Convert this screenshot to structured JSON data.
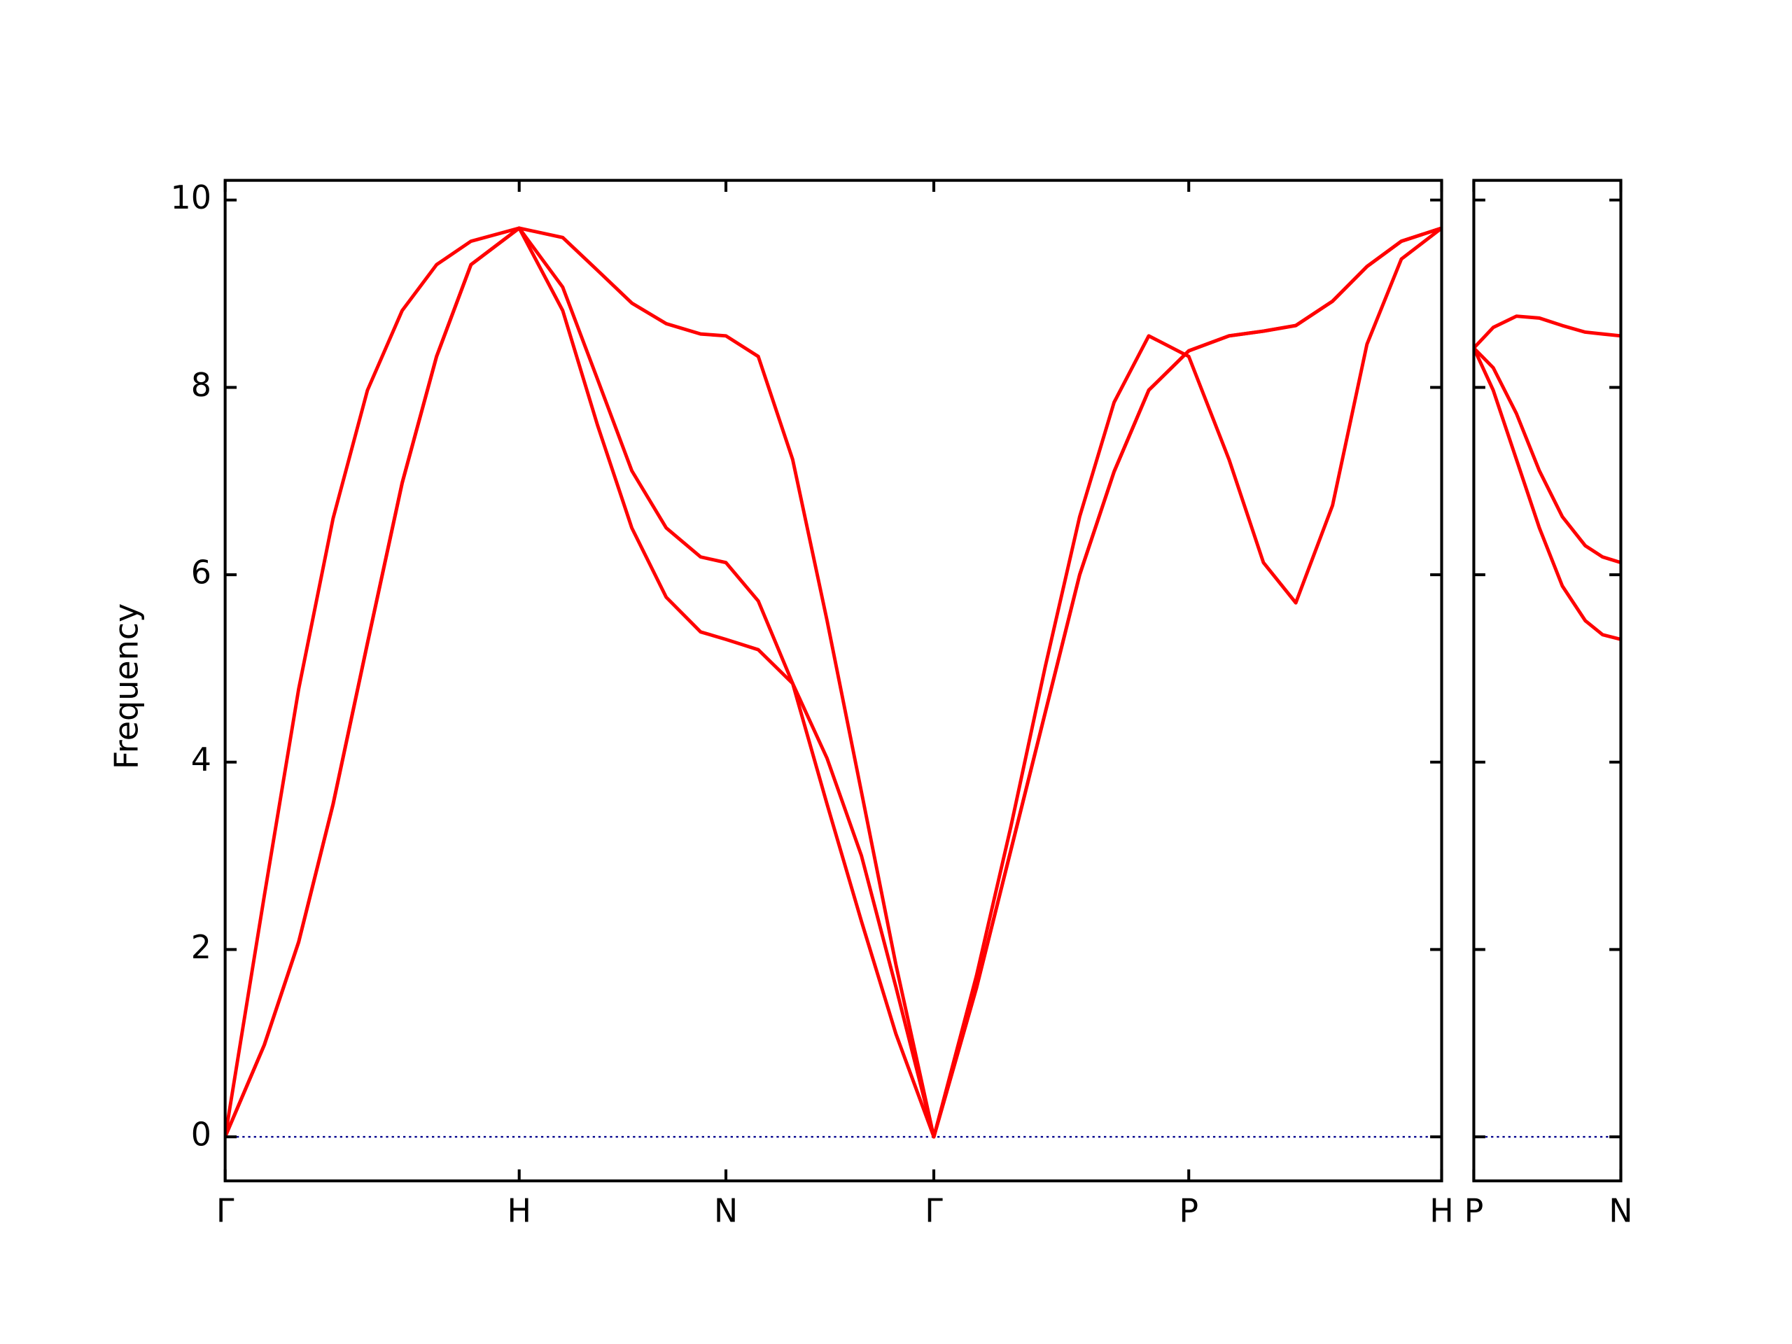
{
  "chart_data": [
    {
      "type": "line",
      "ylabel": "Frequency",
      "x": [
        0,
        0.133,
        0.25,
        0.367,
        0.484,
        0.602,
        0.719,
        0.836,
        1,
        1.148,
        1.266,
        1.383,
        1.5,
        1.617,
        1.703,
        1.813,
        1.93,
        2.047,
        2.164,
        2.281,
        2.41,
        2.555,
        2.672,
        2.789,
        2.906,
        3.023,
        3.141,
        3.277,
        3.414,
        3.531,
        3.641,
        3.766,
        3.883,
        4,
        4.137
      ],
      "series": [
        {
          "color": "#ff0000",
          "values": [
            0,
            2.57,
            4.78,
            6.6,
            7.97,
            8.82,
            9.31,
            9.56,
            9.7,
            9.6,
            9.25,
            8.9,
            8.68,
            8.57,
            8.55,
            8.33,
            7.23,
            5.51,
            3.68,
            1.84,
            0,
            1.72,
            3.31,
            5.02,
            6.62,
            7.84,
            8.55,
            8.33,
            7.23,
            6.13,
            5.7,
            6.74,
            8.46,
            9.37,
            9.7
          ]
        },
        {
          "color": "#ff0000",
          "values": [
            0,
            0.98,
            2.08,
            3.55,
            5.27,
            6.98,
            8.33,
            9.31,
            9.7,
            9.07,
            8.09,
            7.11,
            6.5,
            6.19,
            6.13,
            5.72,
            4.84,
            3.55,
            2.3,
            1.1,
            0,
            1.59,
            3.06,
            4.53,
            6.0,
            7.1,
            7.97,
            8.39,
            8.55,
            8.6,
            8.66,
            8.92,
            9.29,
            9.56,
            9.7
          ]
        },
        {
          "color": "#ff0000",
          "values": [
            0,
            0.98,
            2.08,
            3.55,
            5.27,
            6.98,
            8.33,
            9.31,
            9.7,
            8.82,
            7.6,
            6.5,
            5.76,
            5.39,
            5.31,
            5.2,
            4.84,
            4.04,
            3.0,
            1.6,
            0,
            1.59,
            3.06,
            4.53,
            6.0,
            7.1,
            7.97,
            8.39,
            8.55,
            8.6,
            8.66,
            8.92,
            9.29,
            9.56,
            9.7
          ]
        }
      ],
      "xlim": [
        0,
        4.137
      ],
      "xticks": [
        {
          "value": 0,
          "label": "Γ"
        },
        {
          "value": 1,
          "label": "H"
        },
        {
          "value": 1.703,
          "label": "N"
        },
        {
          "value": 2.41,
          "label": "Γ"
        },
        {
          "value": 3.277,
          "label": "P"
        },
        {
          "value": 4.137,
          "label": "H"
        }
      ],
      "ylim": [
        -0.47,
        10.21
      ],
      "yticks": [
        0,
        2,
        4,
        6,
        8,
        10
      ],
      "ytick_labels": true,
      "hlines": [
        {
          "y": 0,
          "color": "#00008b",
          "style": "dotted"
        }
      ]
    },
    {
      "type": "line",
      "x": [
        0,
        0.066,
        0.145,
        0.223,
        0.301,
        0.379,
        0.438,
        0.5
      ],
      "series": [
        {
          "color": "#ff0000",
          "values": [
            8.42,
            8.64,
            8.76,
            8.74,
            8.66,
            8.59,
            8.57,
            8.55
          ]
        },
        {
          "color": "#ff0000",
          "values": [
            8.42,
            8.21,
            7.72,
            7.11,
            6.62,
            6.31,
            6.19,
            6.13
          ]
        },
        {
          "color": "#ff0000",
          "values": [
            8.42,
            7.97,
            7.23,
            6.5,
            5.88,
            5.51,
            5.36,
            5.31
          ]
        }
      ],
      "xlim": [
        0,
        0.5
      ],
      "xticks": [
        {
          "value": 0,
          "label": "P"
        },
        {
          "value": 0.5,
          "label": "N"
        }
      ],
      "ylim": [
        -0.47,
        10.21
      ],
      "yticks": [
        0,
        2,
        4,
        6,
        8,
        10
      ],
      "ytick_labels": false,
      "hlines": [
        {
          "y": 0,
          "color": "#00008b",
          "style": "dotted"
        }
      ]
    }
  ]
}
